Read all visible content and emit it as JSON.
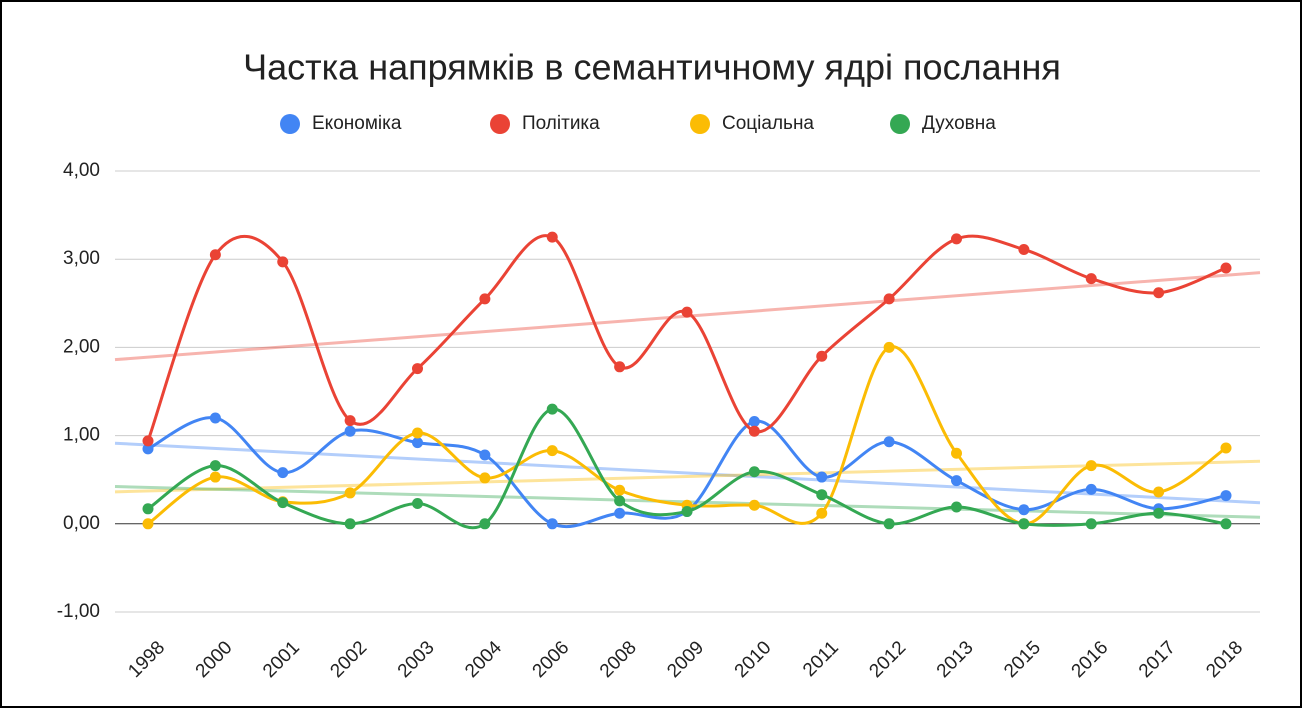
{
  "chart_data": {
    "type": "line",
    "title": "Частка напрямків в семантичному ядрі послання",
    "categories": [
      "1998",
      "2000",
      "2001",
      "2002",
      "2003",
      "2004",
      "2006",
      "2008",
      "2009",
      "2010",
      "2011",
      "2012",
      "2013",
      "2015",
      "2016",
      "2017",
      "2018"
    ],
    "series": [
      {
        "name": "Економіка",
        "color": "#4285f4",
        "values": [
          0.85,
          1.2,
          0.58,
          1.05,
          0.92,
          0.78,
          0,
          0.12,
          0.14,
          1.16,
          0.53,
          0.93,
          0.49,
          0.16,
          0.39,
          0.17,
          0.32
        ]
      },
      {
        "name": "Політика",
        "color": "#ea4335",
        "values": [
          0.94,
          3.05,
          2.97,
          1.17,
          1.76,
          2.55,
          3.25,
          1.78,
          2.4,
          1.05,
          1.9,
          2.55,
          3.23,
          3.11,
          2.78,
          2.62,
          2.9
        ]
      },
      {
        "name": "Соціальна",
        "color": "#fbbc04",
        "values": [
          0,
          0.53,
          0.25,
          0.35,
          1.03,
          0.52,
          0.83,
          0.38,
          0.21,
          0.21,
          0.12,
          2.0,
          0.8,
          0,
          0.66,
          0.36,
          0.86
        ]
      },
      {
        "name": "Духовна",
        "color": "#34a853",
        "values": [
          0.17,
          0.66,
          0.24,
          0,
          0.23,
          0,
          1.3,
          0.26,
          0.14,
          0.59,
          0.33,
          0,
          0.19,
          0,
          0,
          0.12,
          0
        ]
      }
    ],
    "ylim": [
      -1,
      4
    ],
    "yticks": [
      {
        "value": -1,
        "label": "-1,00"
      },
      {
        "value": 0,
        "label": "0,00"
      },
      {
        "value": 1,
        "label": "1,00"
      },
      {
        "value": 2,
        "label": "2,00"
      },
      {
        "value": 3,
        "label": "3,00"
      },
      {
        "value": 4,
        "label": "4,00"
      }
    ],
    "grid": true,
    "smooth": true,
    "trendline": true,
    "legend": "top"
  }
}
